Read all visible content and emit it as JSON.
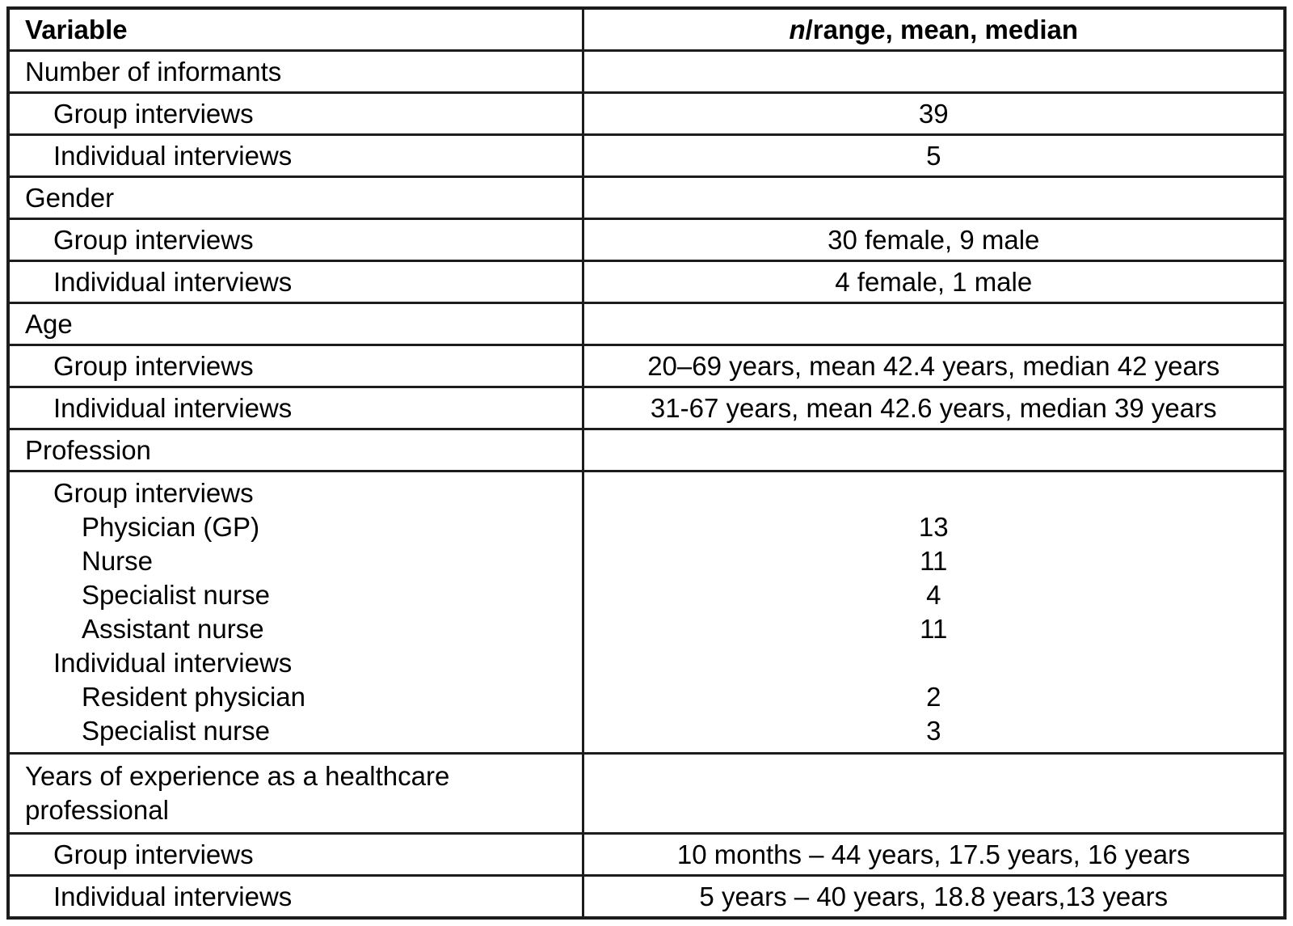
{
  "table": {
    "header": {
      "variable": "Variable",
      "stats_italic": "n",
      "stats_rest": "/range, mean, median"
    },
    "rows": [
      {
        "label": "Number of informants",
        "indent": 0,
        "value": ""
      },
      {
        "label": "Group interviews",
        "indent": 1,
        "value": "39"
      },
      {
        "label": "Individual interviews",
        "indent": 1,
        "value": "5"
      },
      {
        "label": "Gender",
        "indent": 0,
        "value": ""
      },
      {
        "label": "Group interviews",
        "indent": 1,
        "value": "30 female, 9 male"
      },
      {
        "label": "Individual interviews",
        "indent": 1,
        "value": "4 female, 1 male"
      },
      {
        "label": "Age",
        "indent": 0,
        "value": ""
      },
      {
        "label": "Group interviews",
        "indent": 1,
        "value": "20–69 years, mean 42.4 years, median 42 years"
      },
      {
        "label": "Individual interviews",
        "indent": 1,
        "value": "31-67 years, mean 42.6 years, median 39 years"
      },
      {
        "label": "Profession",
        "indent": 0,
        "value": ""
      },
      {
        "multiline": true,
        "lines": [
          {
            "label": "Group interviews",
            "indent": 1,
            "value": ""
          },
          {
            "label": "Physician (GP)",
            "indent": 2,
            "value": "13"
          },
          {
            "label": "Nurse",
            "indent": 2,
            "value": "11"
          },
          {
            "label": "Specialist nurse",
            "indent": 2,
            "value": "4"
          },
          {
            "label": "Assistant nurse",
            "indent": 2,
            "value": "11"
          },
          {
            "label": "Individual interviews",
            "indent": 1,
            "value": ""
          },
          {
            "label": "Resident physician",
            "indent": 2,
            "value": "2"
          },
          {
            "label": "Specialist nurse",
            "indent": 2,
            "value": "3"
          }
        ]
      },
      {
        "label": "Years of experience as a healthcare professional",
        "indent": 0,
        "value": ""
      },
      {
        "label": "Group interviews",
        "indent": 1,
        "value": "10 months – 44 years, 17.5 years, 16 years"
      },
      {
        "label": "Individual interviews",
        "indent": 1,
        "value": "5 years – 40 years, 18.8 years,13 years"
      }
    ]
  }
}
